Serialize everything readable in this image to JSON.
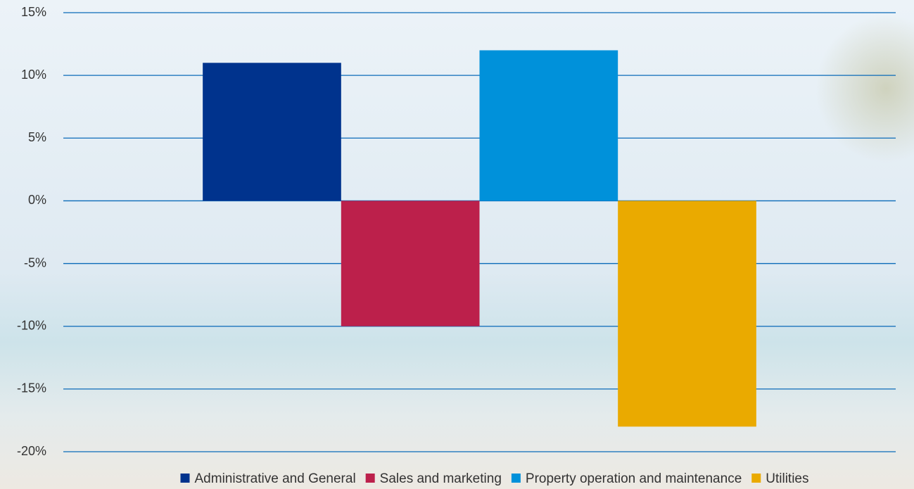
{
  "chart_data": {
    "type": "bar",
    "categories": [
      null
    ],
    "series": [
      {
        "name": "Administrative and General",
        "color": "#00338d",
        "values": [
          11
        ]
      },
      {
        "name": "Sales and marketing",
        "color": "#bc204b",
        "values": [
          -10
        ]
      },
      {
        "name": "Property operation and maintenance",
        "color": "#0091da",
        "values": [
          12
        ]
      },
      {
        "name": "Utilities",
        "color": "#eaaa00",
        "values": [
          -18
        ]
      }
    ],
    "ylim": [
      -20,
      15
    ],
    "yticks": [
      {
        "value": -20,
        "label": "-20%"
      },
      {
        "value": -15,
        "label": "-15%"
      },
      {
        "value": -10,
        "label": "-10%"
      },
      {
        "value": -5,
        "label": "-5%"
      },
      {
        "value": 0,
        "label": "0%"
      },
      {
        "value": 5,
        "label": "5%"
      },
      {
        "value": 10,
        "label": "10%"
      },
      {
        "value": 15,
        "label": "15%"
      }
    ],
    "grid": true,
    "grid_color": "#0a6ab8",
    "legend": "bottom"
  }
}
